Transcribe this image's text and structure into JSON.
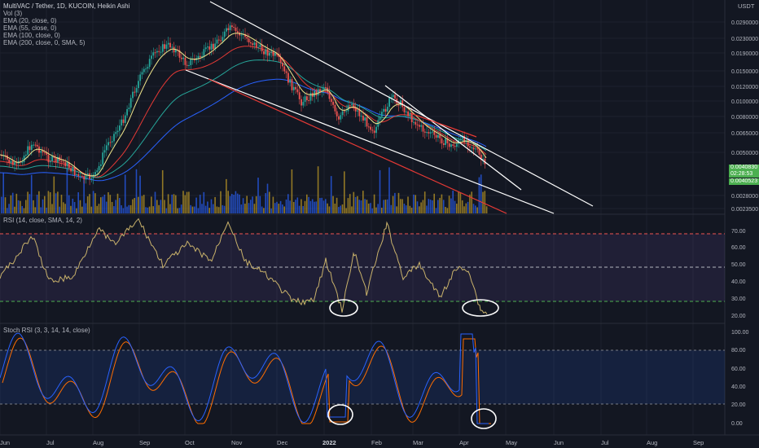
{
  "header": {
    "symbol_line": "MultiVAC / Tether, 1D, KUCOIN, Heikin Ashi",
    "indicators": [
      "Vol (3)",
      "EMA (20, close, 0)",
      "EMA (55, close, 0)",
      "EMA (100, close, 0)",
      "EMA (200, close, 0, SMA, 5)"
    ]
  },
  "currency_label": "USDT",
  "price_axis": {
    "ticks": [
      "0.0290000",
      "0.0230000",
      "0.0190000",
      "0.0150000",
      "0.0120000",
      "0.0100000",
      "0.0080000",
      "0.0065000",
      "0.0050000",
      "0.0028000",
      "0.0023500"
    ],
    "current_price": "0.0040830",
    "countdown": "02:28:53",
    "low_price": "0.0040523"
  },
  "rsi": {
    "label": "RSI (14, close, SMA, 14, 2)",
    "ticks": [
      "70.00",
      "60.00",
      "50.00",
      "40.00",
      "30.00",
      "20.00"
    ]
  },
  "stoch": {
    "label": "Stoch RSI (3, 3, 14, 14, close)",
    "ticks": [
      "100.00",
      "80.00",
      "60.00",
      "40.00",
      "20.00",
      "0.00"
    ]
  },
  "time_axis": {
    "labels": [
      {
        "text": "Jun"
      },
      {
        "text": "Jul"
      },
      {
        "text": "Aug"
      },
      {
        "text": "Sep"
      },
      {
        "text": "Oct"
      },
      {
        "text": "Nov"
      },
      {
        "text": "Dec"
      },
      {
        "text": "2022",
        "bold": true
      },
      {
        "text": "Feb"
      },
      {
        "text": "Mar"
      },
      {
        "text": "Apr"
      },
      {
        "text": "May"
      },
      {
        "text": "Jun"
      },
      {
        "text": "Jul"
      },
      {
        "text": "Aug"
      },
      {
        "text": "Sep"
      }
    ]
  },
  "colors": {
    "background": "#131722",
    "up": "#26a69a",
    "down": "#ef5350",
    "ema20": "#f0e68c",
    "ema55": "#e53935",
    "ema100": "#26a69a",
    "ema200": "#2962ff",
    "rsi_line": "#c9b26b",
    "stoch_k": "#2962ff",
    "stoch_d": "#ff6d00",
    "price_badge": "#4caf50"
  }
}
